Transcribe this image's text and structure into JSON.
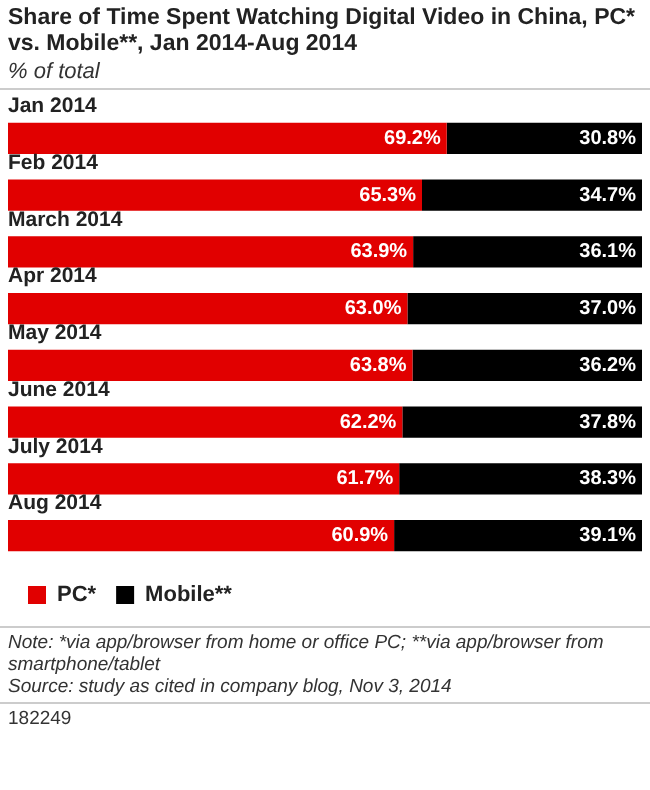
{
  "chart_data": {
    "type": "bar",
    "orientation": "horizontal",
    "stacked": true,
    "title": "Share of Time Spent Watching Digital Video in China, PC* vs. Mobile**, Jan 2014-Aug 2014",
    "subtitle": "% of total",
    "categories": [
      "Jan 2014",
      "Feb 2014",
      "March 2014",
      "Apr 2014",
      "May 2014",
      "June 2014",
      "July 2014",
      "Aug 2014"
    ],
    "series": [
      {
        "name": "PC*",
        "color": "#e10000",
        "values": [
          69.2,
          65.3,
          63.9,
          63.0,
          63.8,
          62.2,
          61.7,
          60.9
        ],
        "value_labels": [
          "69.2%",
          "65.3%",
          "63.9%",
          "63.0%",
          "63.8%",
          "62.2%",
          "61.7%",
          "60.9%"
        ]
      },
      {
        "name": "Mobile**",
        "color": "#000000",
        "values": [
          30.8,
          34.7,
          36.1,
          37.0,
          36.2,
          37.8,
          38.3,
          39.1
        ],
        "value_labels": [
          "30.8%",
          "34.7%",
          "36.1%",
          "37.0%",
          "36.2%",
          "37.8%",
          "38.3%",
          "39.1%"
        ]
      }
    ],
    "xlim": [
      0,
      100
    ],
    "tick_labels": "y",
    "legend": "bottom",
    "annotations": [
      "Note: *via app/browser from home or office PC; **via app/browser from smartphone/tablet",
      "Source: study as cited in company blog, Nov 3, 2014",
      "182249"
    ]
  }
}
